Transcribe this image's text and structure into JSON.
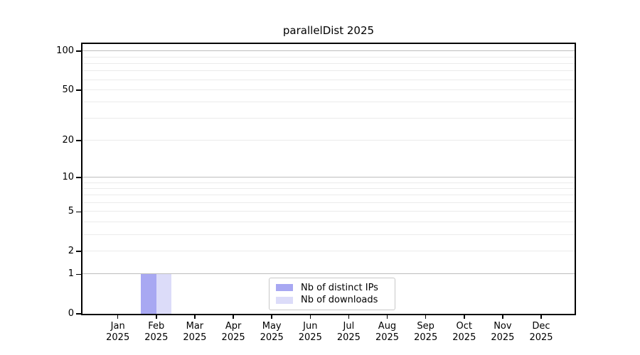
{
  "title": "parallelDist 2025",
  "chart_data": {
    "type": "bar",
    "title": "parallelDist 2025",
    "year_label": "2025",
    "categories": [
      "Jan",
      "Feb",
      "Mar",
      "Apr",
      "May",
      "Jun",
      "Jul",
      "Aug",
      "Sep",
      "Oct",
      "Nov",
      "Dec"
    ],
    "series": [
      {
        "name": "Nb of distinct IPs",
        "color": "#a8a8f2",
        "values": [
          0,
          1,
          0,
          0,
          0,
          0,
          0,
          0,
          0,
          0,
          0,
          0
        ]
      },
      {
        "name": "Nb of downloads",
        "color": "#dcdcf9",
        "values": [
          0,
          1,
          0,
          0,
          0,
          0,
          0,
          0,
          0,
          0,
          0,
          0
        ]
      }
    ],
    "y_axis": {
      "scale": "log1p",
      "ticks": [
        0,
        1,
        2,
        5,
        10,
        20,
        50,
        100
      ],
      "max": 113.6
    },
    "grid": {
      "major": [
        1,
        10,
        100
      ],
      "minor": [
        2,
        3,
        4,
        5,
        6,
        7,
        8,
        9,
        20,
        30,
        40,
        50,
        60,
        70,
        80,
        90
      ],
      "major_color": "#bdbdbd",
      "minor_color": "#ebebeb"
    },
    "legend": {
      "position": "bottom-center",
      "entries": [
        "Nb of distinct IPs",
        "Nb of downloads"
      ]
    }
  }
}
